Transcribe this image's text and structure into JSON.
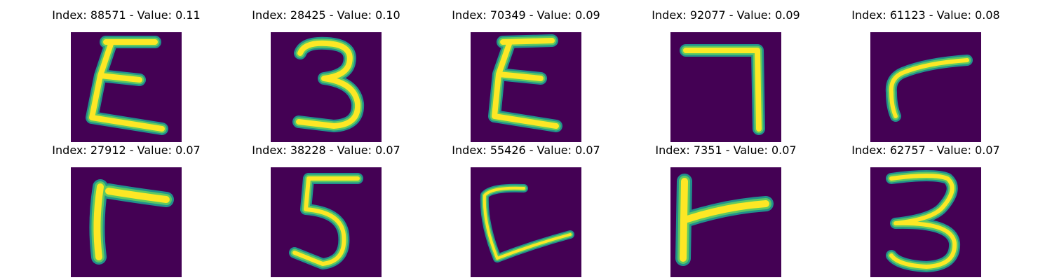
{
  "colors": {
    "background": "#440154",
    "stroke_edge": "#21918c",
    "stroke_mid": "#5ec962",
    "stroke_core": "#fde725"
  },
  "panels": [
    {
      "title": "Index: 88571 - Value: 0.11",
      "glyph": "Σ-like character (reversed 3 / epsilon)"
    },
    {
      "title": "Index: 28425 - Value: 0.10",
      "glyph": "3"
    },
    {
      "title": "Index: 70349 - Value: 0.09",
      "glyph": "Σ-like character (reversed 3 / epsilon)"
    },
    {
      "title": "Index: 92077 - Value: 0.09",
      "glyph": "7"
    },
    {
      "title": "Index: 61123 - Value: 0.08",
      "glyph": "r-like hook"
    },
    {
      "title": "Index: 27912 - Value: 0.07",
      "glyph": "Γ-like corner"
    },
    {
      "title": "Index: 38228 - Value: 0.07",
      "glyph": "5"
    },
    {
      "title": "Index: 55426 - Value: 0.07",
      "glyph": "L-like character"
    },
    {
      "title": "Index: 7351 - Value: 0.07",
      "glyph": "r-like character"
    },
    {
      "title": "Index: 62757 - Value: 0.07",
      "glyph": "3"
    }
  ]
}
